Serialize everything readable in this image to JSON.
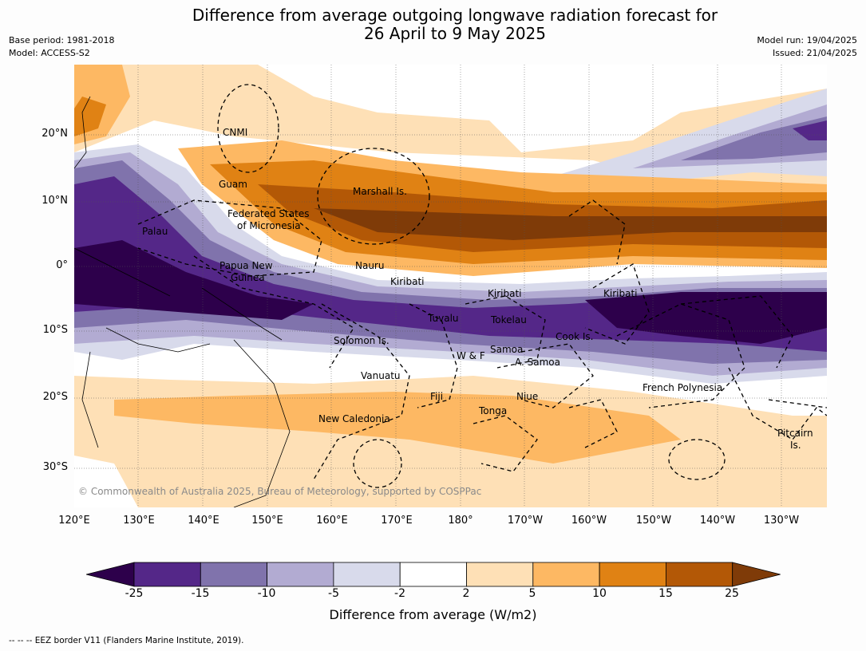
{
  "title_line1": "Difference from average outgoing longwave radiation forecast for",
  "title_line2": "26 April to 9 May 2025",
  "meta": {
    "base_period": "Base period: 1981-2018",
    "model": "Model: ACCESS-S2",
    "model_run": "Model run: 19/04/2025",
    "issued": "Issued: 21/04/2025"
  },
  "axes": {
    "lon_ticks": [
      "120°E",
      "130°E",
      "140°E",
      "150°E",
      "160°E",
      "170°E",
      "180°",
      "170°W",
      "160°W",
      "150°W",
      "140°W",
      "130°W"
    ],
    "lat_ticks": [
      "20°N",
      "10°N",
      "0°",
      "10°S",
      "20°S",
      "30°S"
    ]
  },
  "map_labels": {
    "cnmi": "CNMI",
    "guam": "Guam",
    "marshall": "Marshall Is.",
    "fsm1": "Federated States",
    "fsm2": "of Micronesia",
    "palau": "Palau",
    "png1": "Papua New",
    "png2": "Guinea",
    "nauru": "Nauru",
    "kiribati1": "Kiribati",
    "kiribati2": "Kiribati",
    "kiribati3": "Kiribati",
    "tuvalu": "Tuvalu",
    "tokelau": "Tokelau",
    "cook": "Cook Is.",
    "solomon": "Solomon Is.",
    "wf": "W & F",
    "samoa": "Samoa",
    "asamoa": "A. Samoa",
    "vanuatu": "Vanuatu",
    "fiji": "Fiji",
    "niue": "Niue",
    "tonga": "Tonga",
    "frpoly": "French Polynesia",
    "newcal": "New Caledonia",
    "pitcairn1": "Pitcairn",
    "pitcairn2": "Is."
  },
  "copyright": "© Commonwealth of Australia 2025, Bureau of Meteorology, supported by COSPPac",
  "colorbar": {
    "title": "Difference from average (W/m2)",
    "ticks": [
      "-25",
      "-15",
      "-10",
      "-5",
      "-2",
      "2",
      "5",
      "10",
      "15",
      "25"
    ],
    "colors": [
      "#2d004b",
      "#542788",
      "#8073ac",
      "#b2abd2",
      "#d8daeb",
      "#ffffff",
      "#fee0b6",
      "#fdb863",
      "#e08214",
      "#b35806",
      "#7f3b08"
    ]
  },
  "footnote": "--  --  -- EEZ border V11 (Flanders Marine Institute, 2019)."
}
